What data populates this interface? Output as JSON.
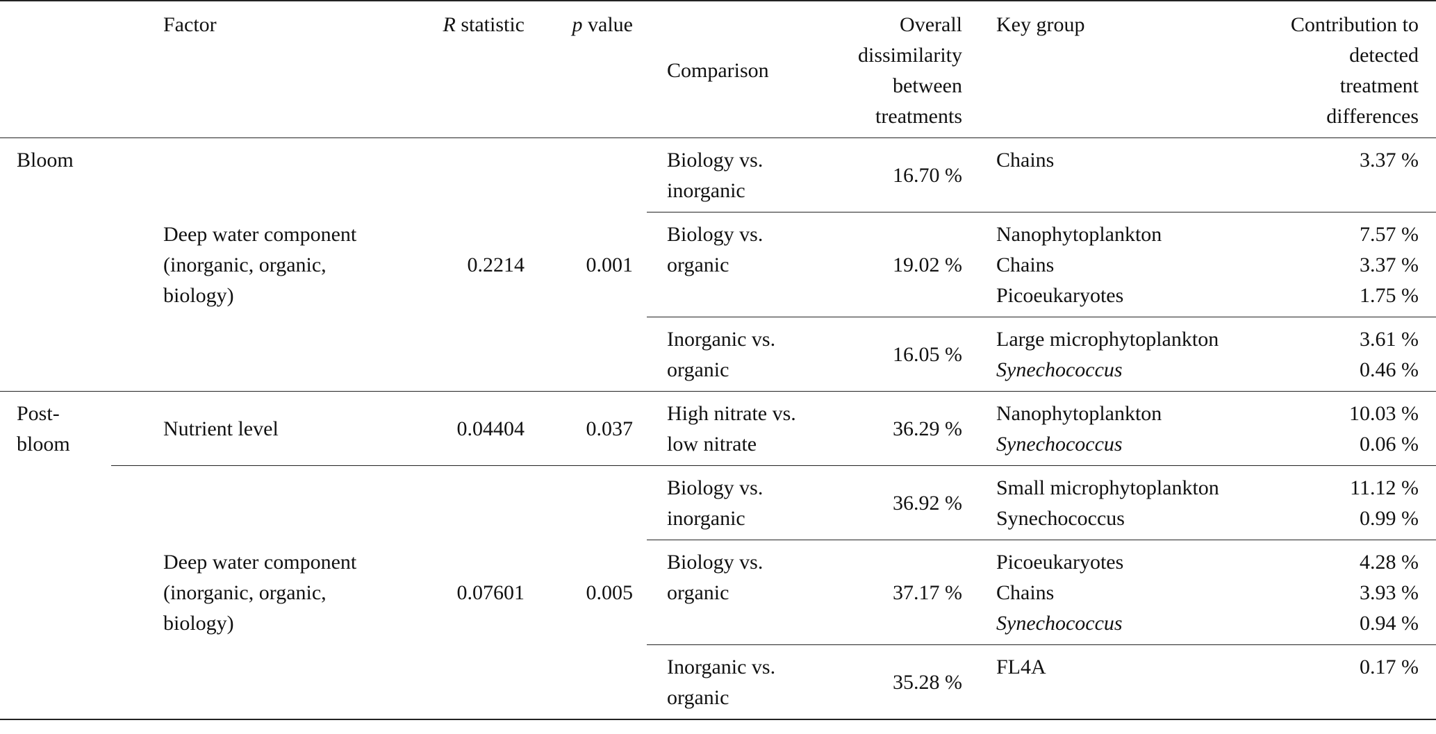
{
  "header": {
    "factor": "Factor",
    "r_statistic": {
      "symbol": "R",
      "text": "statistic"
    },
    "p_value": {
      "symbol": "p",
      "text": "value"
    },
    "comparison": "Comparison",
    "dissimilarity": "Overall dissimilarity between treatments",
    "key_group": "Key group",
    "contribution": "Contribution to detected treatment differences"
  },
  "periods": [
    {
      "period": "Bloom",
      "factors": [
        {
          "factor": "Deep water component (inorganic, organic, biology)",
          "r": "0.2214",
          "p": "0.001",
          "comparisons": [
            {
              "comparison": "Biology vs. inorganic",
              "dissimilarity": "16.70 %",
              "key_groups": [
                {
                  "name": "Chains",
                  "contribution": "3.37 %"
                }
              ]
            },
            {
              "comparison": "Biology vs. organic",
              "dissimilarity": "19.02 %",
              "key_groups": [
                {
                  "name": "Nanophytoplankton",
                  "contribution": "7.57 %"
                },
                {
                  "name": "Chains",
                  "contribution": "3.37 %"
                },
                {
                  "name": "Picoeukaryotes",
                  "contribution": "1.75 %"
                }
              ]
            },
            {
              "comparison": "Inorganic vs. organic",
              "dissimilarity": "16.05 %",
              "key_groups": [
                {
                  "name": "Large microphytoplankton",
                  "contribution": "3.61 %"
                },
                {
                  "name": "Synechococcus",
                  "contribution": "0.46 %",
                  "italic": true
                }
              ]
            }
          ]
        }
      ]
    },
    {
      "period": "Post-bloom",
      "factors": [
        {
          "factor": "Nutrient level",
          "r": "0.04404",
          "p": "0.037",
          "comparisons": [
            {
              "comparison": "High nitrate vs. low nitrate",
              "dissimilarity": "36.29 %",
              "key_groups": [
                {
                  "name": "Nanophytoplankton",
                  "contribution": "10.03 %"
                },
                {
                  "name": "Synechococcus",
                  "contribution": "0.06 %",
                  "italic": true
                }
              ]
            }
          ]
        },
        {
          "factor": "Deep water component (inorganic, organic, biology)",
          "r": "0.07601",
          "p": "0.005",
          "comparisons": [
            {
              "comparison": "Biology vs. inorganic",
              "dissimilarity": "36.92 %",
              "key_groups": [
                {
                  "name": "Small microphytoplankton",
                  "contribution": "11.12 %"
                },
                {
                  "name": "Synechococcus",
                  "contribution": "0.99 %"
                }
              ]
            },
            {
              "comparison": "Biology vs. organic",
              "dissimilarity": "37.17 %",
              "key_groups": [
                {
                  "name": "Picoeukaryotes",
                  "contribution": "4.28 %"
                },
                {
                  "name": "Chains",
                  "contribution": "3.93 %"
                },
                {
                  "name": "Synechococcus",
                  "contribution": "0.94 %",
                  "italic": true
                }
              ]
            },
            {
              "comparison": "Inorganic vs. organic",
              "dissimilarity": "35.28 %",
              "key_groups": [
                {
                  "name": "FL4A",
                  "contribution": "0.17 %"
                }
              ]
            }
          ]
        }
      ]
    }
  ]
}
